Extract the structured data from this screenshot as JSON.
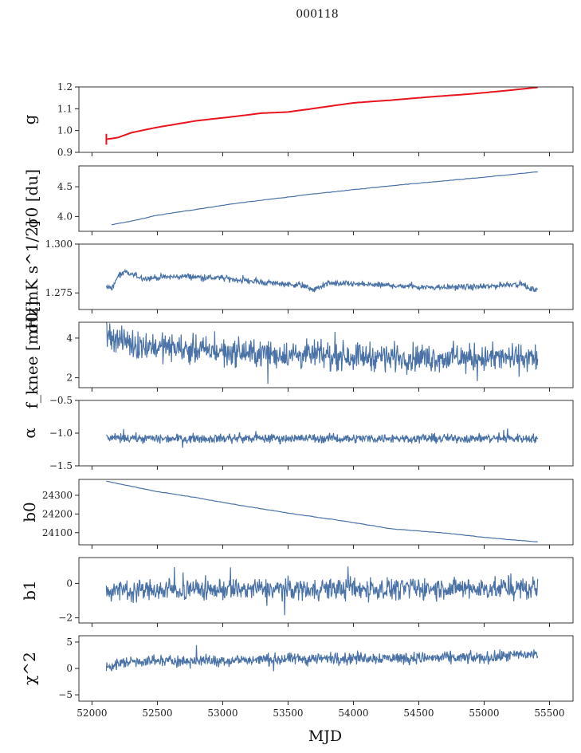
{
  "chart_data": {
    "type": "line",
    "title": "000118",
    "xlabel": "MJD",
    "xlim": [
      51900,
      55680
    ],
    "xticks": [
      52000,
      52500,
      53000,
      53500,
      54000,
      54500,
      55000,
      55500
    ],
    "x_start": 52110,
    "x_end": 55410,
    "panels": [
      {
        "id": "g",
        "ylabel": "g",
        "ylim": [
          0.9,
          1.2
        ],
        "yticks": [
          0.9,
          1.0,
          1.1,
          1.2
        ],
        "ytick_labels": [
          "0.9",
          "1.0",
          "1.1",
          "1.2"
        ],
        "kind": "trend",
        "red_overlay": true,
        "series": [
          {
            "x": 52110,
            "y": 0.96
          },
          {
            "x": 52200,
            "y": 0.968
          },
          {
            "x": 52300,
            "y": 0.99
          },
          {
            "x": 52500,
            "y": 1.015
          },
          {
            "x": 52800,
            "y": 1.045
          },
          {
            "x": 53100,
            "y": 1.065
          },
          {
            "x": 53300,
            "y": 1.08
          },
          {
            "x": 53500,
            "y": 1.085
          },
          {
            "x": 53800,
            "y": 1.11
          },
          {
            "x": 54000,
            "y": 1.127
          },
          {
            "x": 54300,
            "y": 1.14
          },
          {
            "x": 54600,
            "y": 1.155
          },
          {
            "x": 54900,
            "y": 1.168
          },
          {
            "x": 55200,
            "y": 1.185
          },
          {
            "x": 55410,
            "y": 1.198
          }
        ]
      },
      {
        "id": "sigma0_du",
        "ylabel": "σ0 [du]",
        "ylim": [
          3.75,
          4.85
        ],
        "yticks": [
          4.0,
          4.5
        ],
        "ytick_labels": [
          "4.0",
          "4.5"
        ],
        "kind": "trend",
        "series": [
          {
            "x": 52150,
            "y": 3.86
          },
          {
            "x": 52300,
            "y": 3.92
          },
          {
            "x": 52500,
            "y": 4.02
          },
          {
            "x": 52800,
            "y": 4.12
          },
          {
            "x": 53100,
            "y": 4.22
          },
          {
            "x": 53400,
            "y": 4.3
          },
          {
            "x": 53700,
            "y": 4.38
          },
          {
            "x": 54000,
            "y": 4.45
          },
          {
            "x": 54300,
            "y": 4.52
          },
          {
            "x": 54600,
            "y": 4.58
          },
          {
            "x": 55000,
            "y": 4.66
          },
          {
            "x": 55410,
            "y": 4.75
          }
        ]
      },
      {
        "id": "sigma0_mK",
        "ylabel": "σ0[mK s^1/2]",
        "ylim": [
          1.2665,
          1.3
        ],
        "yticks": [
          1.275,
          1.3
        ],
        "ytick_labels": [
          "1.275",
          "1.300"
        ],
        "kind": "noisy",
        "noise": 0.0012,
        "series": [
          {
            "x": 52110,
            "y": 1.2785
          },
          {
            "x": 52150,
            "y": 1.277
          },
          {
            "x": 52200,
            "y": 1.2835
          },
          {
            "x": 52250,
            "y": 1.2855
          },
          {
            "x": 52400,
            "y": 1.2825
          },
          {
            "x": 52700,
            "y": 1.2835
          },
          {
            "x": 53000,
            "y": 1.2825
          },
          {
            "x": 53300,
            "y": 1.2805
          },
          {
            "x": 53600,
            "y": 1.279
          },
          {
            "x": 53700,
            "y": 1.2765
          },
          {
            "x": 53800,
            "y": 1.28
          },
          {
            "x": 54200,
            "y": 1.279
          },
          {
            "x": 54600,
            "y": 1.278
          },
          {
            "x": 55000,
            "y": 1.278
          },
          {
            "x": 55200,
            "y": 1.2795
          },
          {
            "x": 55300,
            "y": 1.2795
          },
          {
            "x": 55350,
            "y": 1.2765
          },
          {
            "x": 55410,
            "y": 1.2775
          }
        ]
      },
      {
        "id": "fknee",
        "ylabel": "f_knee [mHz]",
        "ylim": [
          1.5,
          4.8
        ],
        "yticks": [
          2,
          4
        ],
        "ytick_labels": [
          "2",
          "4"
        ],
        "kind": "noisy",
        "noise": 0.55,
        "series": [
          {
            "x": 52110,
            "y": 4.2
          },
          {
            "x": 52300,
            "y": 3.7
          },
          {
            "x": 52800,
            "y": 3.4
          },
          {
            "x": 53300,
            "y": 3.2
          },
          {
            "x": 54000,
            "y": 3.1
          },
          {
            "x": 54600,
            "y": 3.0
          },
          {
            "x": 55410,
            "y": 3.0
          }
        ]
      },
      {
        "id": "alpha",
        "ylabel": "α",
        "ylim": [
          -1.5,
          -0.5
        ],
        "yticks": [
          -1.5,
          -1.0,
          -0.5
        ],
        "ytick_labels": [
          "−1.5",
          "−1.0",
          "−0.5"
        ],
        "kind": "noisy",
        "noise": 0.055,
        "series": [
          {
            "x": 52110,
            "y": -1.08
          },
          {
            "x": 53000,
            "y": -1.08
          },
          {
            "x": 54000,
            "y": -1.08
          },
          {
            "x": 55410,
            "y": -1.08
          }
        ]
      },
      {
        "id": "b0",
        "ylabel": "b0",
        "ylim": [
          24035,
          24385
        ],
        "yticks": [
          24100,
          24200,
          24300
        ],
        "ytick_labels": [
          "24100",
          "24200",
          "24300"
        ],
        "kind": "trend",
        "series": [
          {
            "x": 52110,
            "y": 24375
          },
          {
            "x": 52300,
            "y": 24348
          },
          {
            "x": 52500,
            "y": 24320
          },
          {
            "x": 52800,
            "y": 24287
          },
          {
            "x": 53100,
            "y": 24250
          },
          {
            "x": 53500,
            "y": 24205
          },
          {
            "x": 53900,
            "y": 24165
          },
          {
            "x": 54300,
            "y": 24120
          },
          {
            "x": 54700,
            "y": 24098
          },
          {
            "x": 55000,
            "y": 24075
          },
          {
            "x": 55410,
            "y": 24050
          }
        ]
      },
      {
        "id": "b1",
        "ylabel": "b1",
        "ylim": [
          -2.3,
          1.5
        ],
        "yticks": [
          -2,
          0
        ],
        "ytick_labels": [
          "−2",
          "0"
        ],
        "kind": "noisy",
        "noise": 0.5,
        "series": [
          {
            "x": 52110,
            "y": -0.4
          },
          {
            "x": 53000,
            "y": -0.35
          },
          {
            "x": 54000,
            "y": -0.3
          },
          {
            "x": 55410,
            "y": -0.3
          }
        ]
      },
      {
        "id": "chi2",
        "ylabel": "χ^2",
        "ylim": [
          -6.2,
          6.2
        ],
        "yticks": [
          -5,
          0,
          5
        ],
        "ytick_labels": [
          "−5",
          "0",
          "5"
        ],
        "kind": "noisy",
        "noise": 0.9,
        "series": [
          {
            "x": 52110,
            "y": 0.3
          },
          {
            "x": 52300,
            "y": 1.4
          },
          {
            "x": 53000,
            "y": 1.5
          },
          {
            "x": 54000,
            "y": 2.0
          },
          {
            "x": 55000,
            "y": 2.0
          },
          {
            "x": 55410,
            "y": 2.8
          }
        ]
      }
    ]
  }
}
